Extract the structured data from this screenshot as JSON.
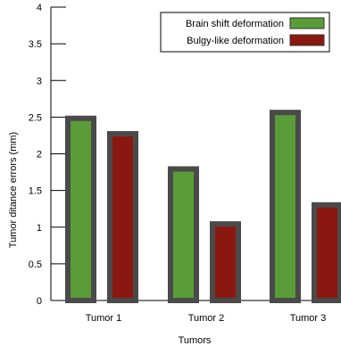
{
  "chart_data": {
    "type": "bar",
    "title": "",
    "xlabel": "Tumors",
    "ylabel": "Tumor ditance errors (mm)",
    "ylim": [
      0,
      4
    ],
    "yticks": [
      "0",
      "0.5",
      "1",
      "1.5",
      "2",
      "2.5",
      "3",
      "3.5",
      "4"
    ],
    "ytick_values": [
      0,
      0.5,
      1,
      1.5,
      2,
      2.5,
      3,
      3.5,
      4
    ],
    "categories": [
      "Tumor 1",
      "Tumor 2",
      "Tumor 3"
    ],
    "series": [
      {
        "name": "Brain shift deformation",
        "values": [
          2.52,
          1.83,
          2.6
        ],
        "color": "#5a9c38"
      },
      {
        "name": "Bulgy-like deformation",
        "values": [
          2.31,
          1.08,
          1.34
        ],
        "color": "#8b1810"
      }
    ],
    "bar_border_color": "#4a4a4a",
    "grid": false,
    "legend_position": "top-right"
  }
}
